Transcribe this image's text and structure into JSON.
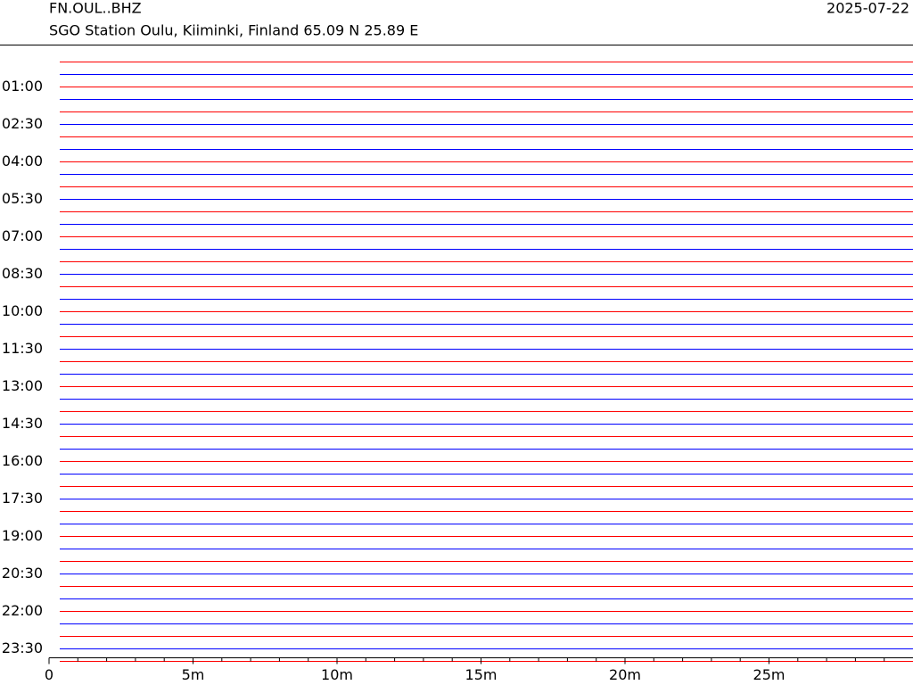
{
  "chart_data": {
    "type": "helicorder",
    "title": "FN.OUL..BHZ",
    "subtitle": "SGO Station Oulu, Kiiminki, Finland  65.09 N 25.89 E",
    "date": "2025-07-22",
    "categories": [
      null,
      null,
      "01:00",
      null,
      null,
      "02:30",
      null,
      null,
      "04:00",
      null,
      null,
      "05:30",
      null,
      null,
      "07:00",
      null,
      null,
      "08:30",
      null,
      null,
      "10:00",
      null,
      null,
      "11:30",
      null,
      null,
      "13:00",
      null,
      null,
      "14:30",
      null,
      null,
      "16:00",
      null,
      null,
      "17:30",
      null,
      null,
      "19:00",
      null,
      null,
      "20:30",
      null,
      null,
      "22:00",
      null,
      null,
      "23:30",
      null
    ],
    "colors": [
      "#ff0000",
      "#0000ff"
    ],
    "xlim": [
      0,
      30
    ],
    "xticks": [
      0,
      {
        "value": 5,
        "label": "5m"
      },
      {
        "value": 10,
        "label": "10m"
      },
      {
        "value": 15,
        "label": "15m"
      },
      {
        "value": 20,
        "label": "20m"
      },
      {
        "value": 25,
        "label": "25m"
      }
    ],
    "xminorticks": [
      1,
      2,
      3,
      4,
      6,
      7,
      8,
      9,
      11,
      12,
      13,
      14,
      16,
      17,
      18,
      19,
      21,
      22,
      23,
      24,
      26,
      27,
      28,
      29
    ]
  }
}
